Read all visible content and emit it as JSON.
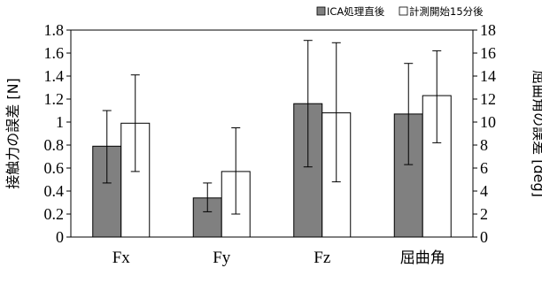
{
  "chart_data": {
    "type": "bar",
    "categories": [
      "Fx",
      "Fy",
      "Fz",
      "屈曲角"
    ],
    "series": [
      {
        "name": "ICA処理直後",
        "color": "#808080",
        "values": [
          0.79,
          0.34,
          1.16,
          1.07
        ],
        "error_low": [
          0.47,
          0.22,
          0.61,
          0.63
        ],
        "error_high": [
          1.1,
          0.47,
          1.71,
          1.51
        ]
      },
      {
        "name": "計測開始15分後",
        "color": "#ffffff",
        "values": [
          0.99,
          0.57,
          1.08,
          1.23
        ],
        "error_low": [
          0.57,
          0.2,
          0.48,
          0.82
        ],
        "error_high": [
          1.41,
          0.95,
          1.69,
          1.62
        ]
      }
    ],
    "ylabel": "接触力の誤差 [N]",
    "ylim": [
      0,
      1.8
    ],
    "yticks": [
      "0",
      "0.2",
      "0.4",
      "0.6",
      "0.8",
      "1",
      "1.2",
      "1.4",
      "1.6",
      "1.8"
    ],
    "y2label": "屈曲角の誤差 [deg]",
    "y2lim": [
      0,
      18
    ],
    "y2ticks": [
      "0",
      "2",
      "4",
      "6",
      "8",
      "10",
      "12",
      "14",
      "16",
      "18"
    ],
    "legend_position": "top-right",
    "grid": false
  }
}
